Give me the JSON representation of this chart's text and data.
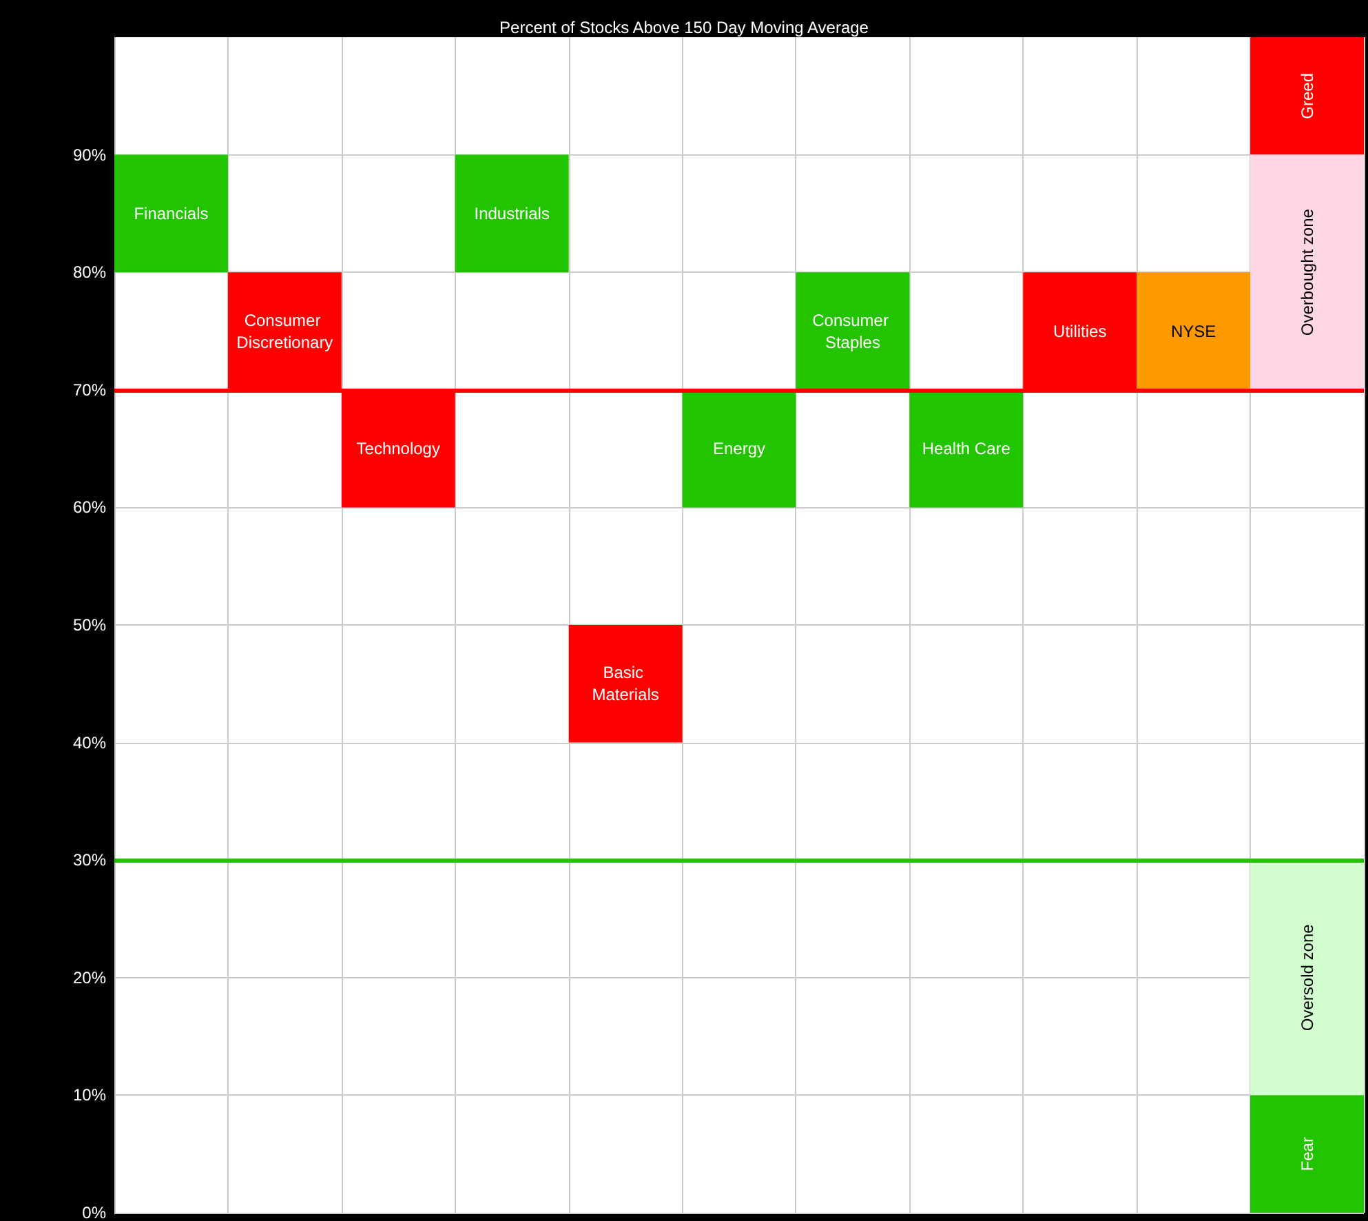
{
  "chart_data": {
    "type": "bar",
    "title": "Percent of Stocks Above 150 Day Moving Average",
    "categories": [
      "Financials",
      "Consumer Discretionary",
      "Technology",
      "Industrials",
      "Basic Materials",
      "Energy",
      "Consumer Staples",
      "Health Care",
      "Utilities",
      "NYSE",
      null
    ],
    "series": [
      {
        "values": [
          10,
          10,
          10,
          10,
          10,
          10,
          10,
          10,
          10,
          10,
          null
        ],
        "base": [
          80,
          70,
          60,
          80,
          40,
          60,
          70,
          60,
          70,
          70,
          null
        ],
        "colors": [
          "#22c400",
          "#ff0000",
          "#ff0000",
          "#22c400",
          "#ff0000",
          "#22c400",
          "#22c400",
          "#22c400",
          "#ff0000",
          "#ff9900",
          null
        ]
      },
      {
        "name": "Greed",
        "color": "#ff0000",
        "values": [
          null,
          null,
          null,
          null,
          null,
          null,
          null,
          null,
          null,
          null,
          10
        ],
        "base": [
          null,
          null,
          null,
          null,
          null,
          null,
          null,
          null,
          null,
          null,
          90
        ]
      },
      {
        "name": "Overbought zone",
        "color": "#ffd6e6",
        "values": [
          null,
          null,
          null,
          null,
          null,
          null,
          null,
          null,
          null,
          null,
          20
        ],
        "base": [
          null,
          null,
          null,
          null,
          null,
          null,
          null,
          null,
          null,
          null,
          70
        ]
      },
      {
        "name": "Oversold zone",
        "color": "#d2fecf",
        "values": [
          null,
          null,
          null,
          null,
          null,
          null,
          null,
          null,
          null,
          null,
          20
        ],
        "base": [
          null,
          null,
          null,
          null,
          null,
          null,
          null,
          null,
          null,
          null,
          10
        ]
      },
      {
        "name": "Fear",
        "color": "#22c400",
        "values": [
          null,
          null,
          null,
          null,
          null,
          null,
          null,
          null,
          null,
          null,
          10
        ],
        "base": [
          null,
          null,
          null,
          null,
          null,
          null,
          null,
          null,
          null,
          null,
          0
        ]
      }
    ],
    "ylim": [
      0,
      100
    ],
    "yticks": [
      {
        "value": 0,
        "label": "0%"
      },
      {
        "value": 10,
        "label": "10%"
      },
      {
        "value": 20,
        "label": "20%"
      },
      {
        "value": 30,
        "label": "30%"
      },
      {
        "value": 40,
        "label": "40%"
      },
      {
        "value": 50,
        "label": "50%"
      },
      {
        "value": 60,
        "label": "60%"
      },
      {
        "value": 70,
        "label": "70%"
      },
      {
        "value": 80,
        "label": "80%"
      },
      {
        "value": 90,
        "label": "90%"
      }
    ],
    "grid": true,
    "tick_labels": "y",
    "ref_lines": [
      {
        "axis": "y",
        "value": 70,
        "color": "#ff0000"
      },
      {
        "axis": "y",
        "value": 30,
        "color": "#22c400"
      }
    ]
  }
}
